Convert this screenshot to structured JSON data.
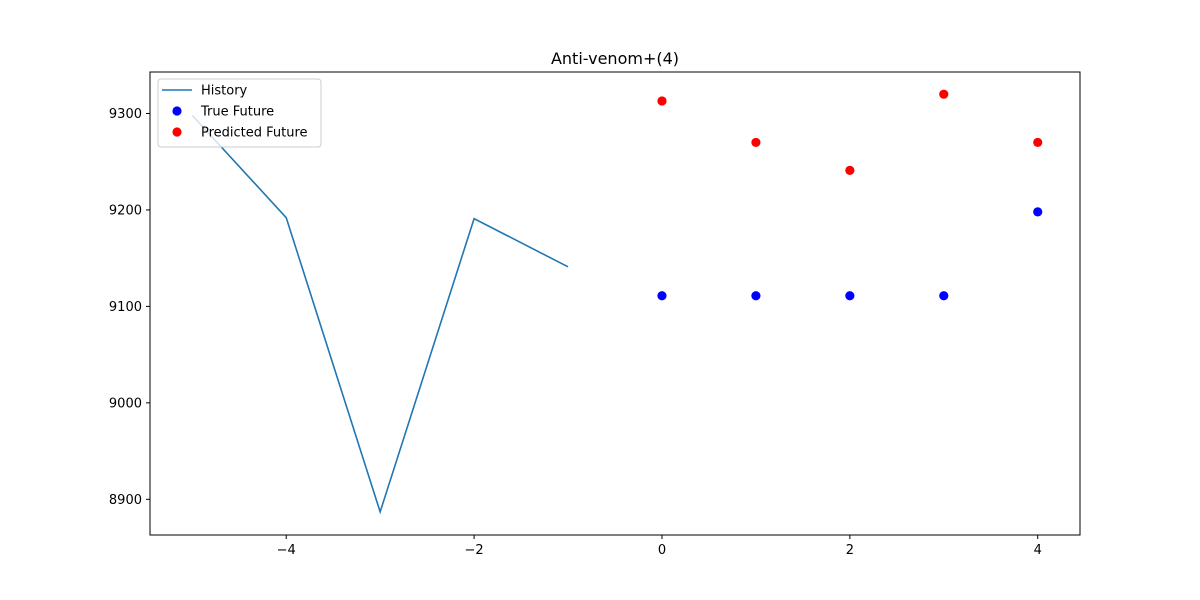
{
  "chart_data": {
    "type": "line",
    "title": "Anti-venom+(4)",
    "xlabel": "",
    "ylabel": "",
    "xlim": [
      -5.45,
      4.45
    ],
    "ylim": [
      8863,
      9343
    ],
    "x_ticks": [
      -4,
      -2,
      0,
      2,
      4
    ],
    "x_tick_labels": [
      "−4",
      "−2",
      "0",
      "2",
      "4"
    ],
    "y_ticks": [
      8900,
      9000,
      9100,
      9200,
      9300
    ],
    "y_tick_labels": [
      "8900",
      "9000",
      "9100",
      "9200",
      "9300"
    ],
    "grid": false,
    "legend_position": "upper-left",
    "series": [
      {
        "name": "History",
        "kind": "line",
        "color": "#1f77b4",
        "x": [
          -5,
          -4,
          -3,
          -2,
          -1
        ],
        "y": [
          9298,
          9192,
          8887,
          9191,
          9141
        ]
      },
      {
        "name": "True Future",
        "kind": "scatter",
        "color": "#0000ff",
        "x": [
          0,
          1,
          2,
          3,
          4
        ],
        "y": [
          9111,
          9111,
          9111,
          9111,
          9198
        ]
      },
      {
        "name": "Predicted Future",
        "kind": "scatter",
        "color": "#ff0000",
        "x": [
          0,
          1,
          2,
          3,
          4
        ],
        "y": [
          9313,
          9270,
          9241,
          9320,
          9270
        ]
      }
    ]
  }
}
